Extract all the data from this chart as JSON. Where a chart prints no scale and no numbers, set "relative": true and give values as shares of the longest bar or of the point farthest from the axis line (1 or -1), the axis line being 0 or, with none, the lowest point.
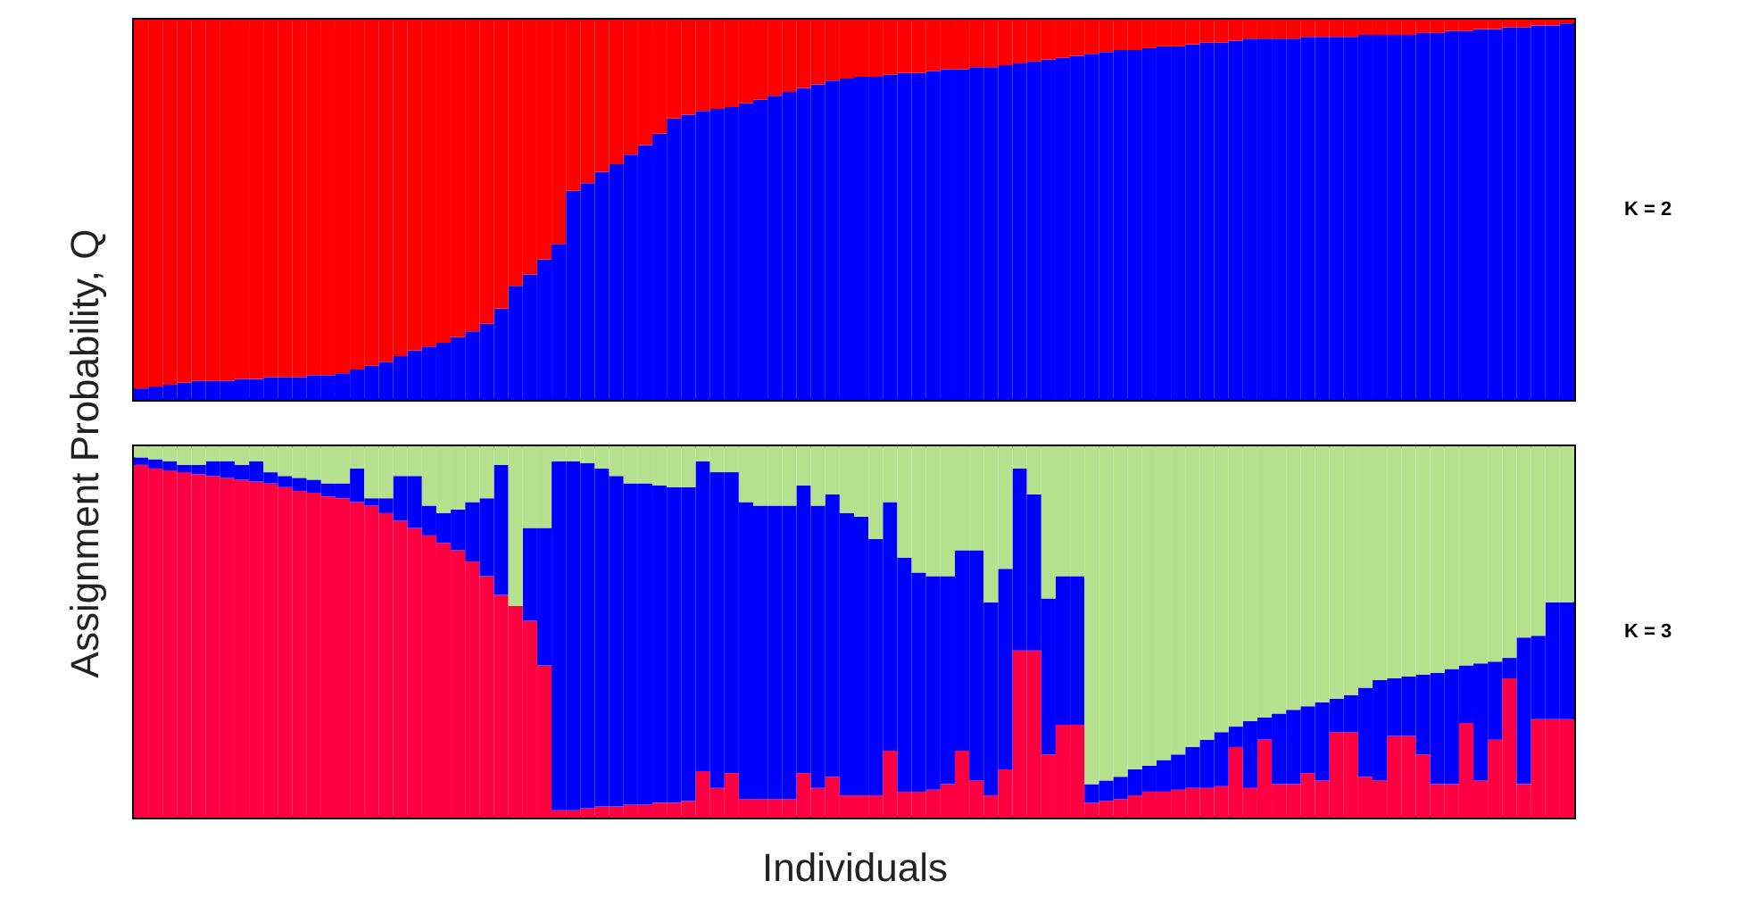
{
  "chart_data": [
    {
      "type": "bar",
      "stacked": true,
      "relative": true,
      "annotations": [
        "K = 2"
      ],
      "ylabel": "Assignment Probability, Q",
      "categories": [
        null,
        null,
        null,
        null,
        null,
        null,
        null,
        null,
        null,
        null,
        null,
        null,
        null,
        null,
        null,
        null,
        null,
        null,
        null,
        null,
        null,
        null,
        null,
        null,
        null,
        null,
        null,
        null,
        null,
        null,
        null,
        null,
        null,
        null,
        null,
        null,
        null,
        null,
        null,
        null,
        null,
        null,
        null,
        null,
        null,
        null,
        null,
        null,
        null,
        null,
        null,
        null,
        null,
        null,
        null,
        null,
        null,
        null,
        null,
        null,
        null,
        null,
        null,
        null,
        null,
        null,
        null,
        null,
        null,
        null,
        null,
        null,
        null,
        null,
        null,
        null,
        null,
        null,
        null,
        null,
        null,
        null,
        null,
        null,
        null,
        null,
        null,
        null,
        null,
        null,
        null,
        null,
        null,
        null,
        null,
        null,
        null,
        null,
        null,
        null
      ],
      "series": [
        {
          "color": "#0000ff",
          "values": [
            0.03,
            0.035,
            0.04,
            0.045,
            0.05,
            0.05,
            0.05,
            0.055,
            0.055,
            0.06,
            0.06,
            0.06,
            0.065,
            0.065,
            0.07,
            0.08,
            0.09,
            0.1,
            0.115,
            0.13,
            0.14,
            0.15,
            0.165,
            0.18,
            0.2,
            0.24,
            0.3,
            0.33,
            0.37,
            0.41,
            0.55,
            0.57,
            0.6,
            0.62,
            0.645,
            0.67,
            0.7,
            0.74,
            0.75,
            0.76,
            0.765,
            0.77,
            0.78,
            0.79,
            0.8,
            0.81,
            0.82,
            0.83,
            0.84,
            0.845,
            0.85,
            0.85,
            0.855,
            0.86,
            0.86,
            0.865,
            0.87,
            0.87,
            0.875,
            0.875,
            0.88,
            0.885,
            0.89,
            0.895,
            0.9,
            0.905,
            0.91,
            0.915,
            0.92,
            0.92,
            0.925,
            0.93,
            0.93,
            0.935,
            0.94,
            0.94,
            0.945,
            0.95,
            0.95,
            0.95,
            0.95,
            0.955,
            0.955,
            0.955,
            0.955,
            0.96,
            0.96,
            0.96,
            0.96,
            0.965,
            0.965,
            0.97,
            0.97,
            0.975,
            0.975,
            0.98,
            0.98,
            0.985,
            0.985,
            0.99
          ]
        },
        {
          "color": "#ff0000",
          "values": [
            0.97,
            0.965,
            0.96,
            0.955,
            0.95,
            0.95,
            0.95,
            0.945,
            0.945,
            0.94,
            0.94,
            0.94,
            0.935,
            0.935,
            0.93,
            0.92,
            0.91,
            0.9,
            0.885,
            0.87,
            0.86,
            0.85,
            0.835,
            0.82,
            0.8,
            0.76,
            0.7,
            0.67,
            0.63,
            0.59,
            0.45,
            0.43,
            0.4,
            0.38,
            0.355,
            0.33,
            0.3,
            0.26,
            0.25,
            0.24,
            0.235,
            0.23,
            0.22,
            0.21,
            0.2,
            0.19,
            0.18,
            0.17,
            0.16,
            0.155,
            0.15,
            0.15,
            0.145,
            0.14,
            0.14,
            0.135,
            0.13,
            0.13,
            0.125,
            0.125,
            0.12,
            0.115,
            0.11,
            0.105,
            0.1,
            0.095,
            0.09,
            0.085,
            0.08,
            0.08,
            0.075,
            0.07,
            0.07,
            0.065,
            0.06,
            0.06,
            0.055,
            0.05,
            0.05,
            0.05,
            0.05,
            0.045,
            0.045,
            0.045,
            0.045,
            0.04,
            0.04,
            0.04,
            0.04,
            0.035,
            0.035,
            0.03,
            0.03,
            0.025,
            0.025,
            0.02,
            0.02,
            0.015,
            0.015,
            0.01
          ]
        }
      ]
    },
    {
      "type": "bar",
      "stacked": true,
      "relative": true,
      "annotations": [
        "K = 3"
      ],
      "xlabel": "Individuals",
      "categories": [
        null,
        null,
        null,
        null,
        null,
        null,
        null,
        null,
        null,
        null,
        null,
        null,
        null,
        null,
        null,
        null,
        null,
        null,
        null,
        null,
        null,
        null,
        null,
        null,
        null,
        null,
        null,
        null,
        null,
        null,
        null,
        null,
        null,
        null,
        null,
        null,
        null,
        null,
        null,
        null,
        null,
        null,
        null,
        null,
        null,
        null,
        null,
        null,
        null,
        null,
        null,
        null,
        null,
        null,
        null,
        null,
        null,
        null,
        null,
        null,
        null,
        null,
        null,
        null,
        null,
        null,
        null,
        null,
        null,
        null,
        null,
        null,
        null,
        null,
        null,
        null,
        null,
        null,
        null,
        null,
        null,
        null,
        null,
        null,
        null,
        null,
        null,
        null,
        null,
        null,
        null,
        null,
        null,
        null,
        null,
        null,
        null,
        null,
        null,
        null
      ],
      "series": [
        {
          "color": "#ff0040",
          "values": [
            0.95,
            0.94,
            0.935,
            0.93,
            0.925,
            0.92,
            0.915,
            0.91,
            0.905,
            0.9,
            0.89,
            0.88,
            0.875,
            0.865,
            0.86,
            0.85,
            0.84,
            0.82,
            0.8,
            0.78,
            0.76,
            0.74,
            0.72,
            0.69,
            0.65,
            0.6,
            0.57,
            0.53,
            0.41,
            0.02,
            0.02,
            0.025,
            0.03,
            0.03,
            0.035,
            0.035,
            0.04,
            0.04,
            0.045,
            0.125,
            0.08,
            0.12,
            0.05,
            0.05,
            0.05,
            0.05,
            0.12,
            0.08,
            0.11,
            0.06,
            0.06,
            0.06,
            0.18,
            0.07,
            0.07,
            0.075,
            0.09,
            0.18,
            0.1,
            0.06,
            0.13,
            0.45,
            0.45,
            0.17,
            0.25,
            0.25,
            0.04,
            0.045,
            0.05,
            0.06,
            0.07,
            0.07,
            0.075,
            0.08,
            0.08,
            0.085,
            0.19,
            0.08,
            0.21,
            0.09,
            0.09,
            0.12,
            0.1,
            0.23,
            0.23,
            0.11,
            0.1,
            0.22,
            0.22,
            0.17,
            0.09,
            0.09,
            0.255,
            0.1,
            0.21,
            0.375,
            0.09,
            0.265,
            0.265,
            0.265
          ]
        },
        {
          "color": "#0000ff",
          "values": [
            0.02,
            0.025,
            0.025,
            0.02,
            0.025,
            0.04,
            0.045,
            0.04,
            0.055,
            0.03,
            0.03,
            0.035,
            0.035,
            0.035,
            0.04,
            0.09,
            0.02,
            0.04,
            0.12,
            0.14,
            0.08,
            0.08,
            0.11,
            0.16,
            0.21,
            0.35,
            0,
            0.25,
            0.37,
            0.94,
            0.94,
            0.93,
            0.91,
            0.89,
            0.865,
            0.865,
            0.855,
            0.85,
            0.845,
            0.835,
            0.85,
            0.81,
            0.8,
            0.79,
            0.79,
            0.79,
            0.775,
            0.76,
            0.76,
            0.76,
            0.75,
            0.69,
            0.67,
            0.63,
            0.59,
            0.575,
            0.56,
            0.54,
            0.62,
            0.52,
            0.54,
            0.49,
            0.42,
            0.42,
            0.4,
            0.4,
            0.05,
            0.055,
            0.06,
            0.07,
            0.07,
            0.085,
            0.095,
            0.11,
            0.13,
            0.145,
            0.055,
            0.18,
            0.06,
            0.19,
            0.2,
            0.18,
            0.21,
            0.09,
            0.1,
            0.24,
            0.27,
            0.155,
            0.16,
            0.215,
            0.3,
            0.31,
            0.155,
            0.315,
            0.21,
            0.055,
            0.395,
            0.225,
            0.315,
            0.315
          ]
        },
        {
          "color": "#b5e08d",
          "values": [
            0.03,
            0.035,
            0.04,
            0.05,
            0.05,
            0.04,
            0.04,
            0.05,
            0.04,
            0.07,
            0.08,
            0.085,
            0.09,
            0.1,
            0.1,
            0.06,
            0.14,
            0.14,
            0.08,
            0.08,
            0.16,
            0.18,
            0.17,
            0.15,
            0.14,
            0.05,
            0.43,
            0.22,
            0.22,
            0.04,
            0.04,
            0.045,
            0.06,
            0.08,
            0.1,
            0.1,
            0.105,
            0.11,
            0.11,
            0.04,
            0.07,
            0.07,
            0.15,
            0.16,
            0.16,
            0.16,
            0.105,
            0.16,
            0.13,
            0.18,
            0.19,
            0.25,
            0.15,
            0.3,
            0.34,
            0.35,
            0.35,
            0.28,
            0.28,
            0.42,
            0.33,
            0.06,
            0.13,
            0.41,
            0.35,
            0.35,
            0.91,
            0.9,
            0.89,
            0.87,
            0.86,
            0.845,
            0.83,
            0.81,
            0.79,
            0.77,
            0.755,
            0.74,
            0.73,
            0.72,
            0.71,
            0.7,
            0.69,
            0.68,
            0.67,
            0.65,
            0.63,
            0.625,
            0.62,
            0.615,
            0.61,
            0.6,
            0.59,
            0.585,
            0.58,
            0.57,
            0.515,
            0.51,
            0.42,
            0.42
          ]
        }
      ]
    }
  ]
}
